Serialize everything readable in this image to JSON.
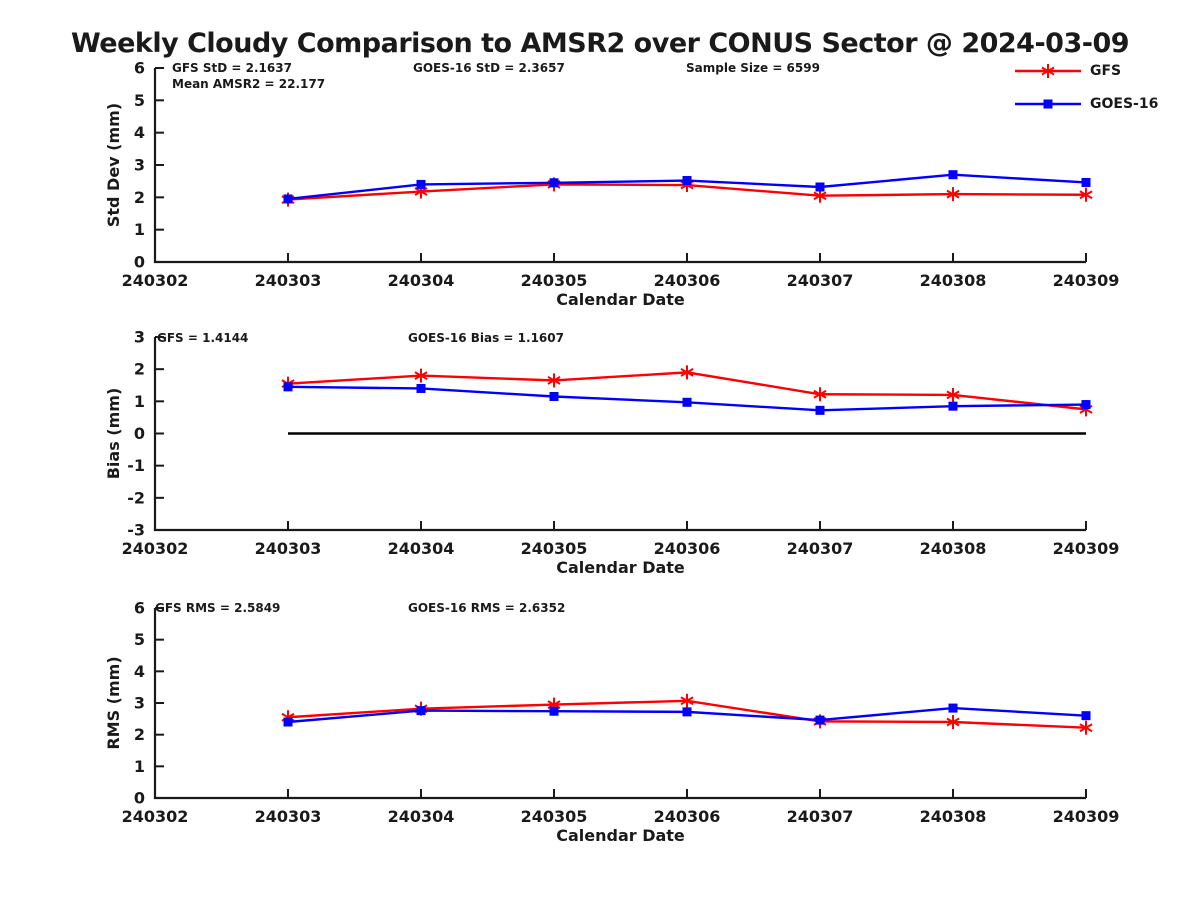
{
  "title": "Weekly Cloudy Comparison to AMSR2 over CONUS Sector @ 2024-03-09",
  "colors": {
    "gfs": "#ff0000",
    "goes16": "#0000ff",
    "axis": "#1a1a1a",
    "zero_line": "#000000"
  },
  "legend": {
    "items": [
      {
        "label": "GFS",
        "color": "#ff0000",
        "marker": "asterisk"
      },
      {
        "label": "GOES-16",
        "color": "#0000ff",
        "marker": "square"
      }
    ]
  },
  "chart_data": [
    {
      "type": "line",
      "id": "stddev",
      "ylabel": "Std Dev (mm)",
      "xlabel": "Calendar Date",
      "ylim": [
        0,
        6
      ],
      "yticks": [
        0,
        1,
        2,
        3,
        4,
        5,
        6
      ],
      "x_categories": [
        "240302",
        "240303",
        "240304",
        "240305",
        "240306",
        "240307",
        "240308",
        "240309"
      ],
      "annotations": [
        {
          "text": "GFS StD = 2.1637"
        },
        {
          "text": "Mean AMSR2 = 22.177"
        },
        {
          "text": "GOES-16 StD = 2.3657"
        },
        {
          "text": "Sample Size = 6599"
        }
      ],
      "series": [
        {
          "name": "GFS",
          "color": "#ff0000",
          "marker": "asterisk",
          "x": [
            "240303",
            "240304",
            "240305",
            "240306",
            "240307",
            "240308",
            "240309"
          ],
          "values": [
            1.93,
            2.18,
            2.4,
            2.38,
            2.05,
            2.1,
            2.08
          ]
        },
        {
          "name": "GOES-16",
          "color": "#0000ff",
          "marker": "square",
          "x": [
            "240303",
            "240304",
            "240305",
            "240306",
            "240307",
            "240308",
            "240309"
          ],
          "values": [
            1.95,
            2.4,
            2.45,
            2.52,
            2.32,
            2.7,
            2.46
          ]
        }
      ]
    },
    {
      "type": "line",
      "id": "bias",
      "ylabel": "Bias (mm)",
      "xlabel": "Calendar Date",
      "ylim": [
        -3,
        3
      ],
      "yticks": [
        -3,
        -2,
        -1,
        0,
        1,
        2,
        3
      ],
      "x_categories": [
        "240302",
        "240303",
        "240304",
        "240305",
        "240306",
        "240307",
        "240308",
        "240309"
      ],
      "annotations": [
        {
          "text": "GFS = 1.4144"
        },
        {
          "text": "GOES-16 Bias  = 1.1607"
        }
      ],
      "ref_line": {
        "y": 0,
        "x_start": "240303",
        "x_end": "240309",
        "color": "#000000"
      },
      "series": [
        {
          "name": "GFS",
          "color": "#ff0000",
          "marker": "asterisk",
          "x": [
            "240303",
            "240304",
            "240305",
            "240306",
            "240307",
            "240308",
            "240309"
          ],
          "values": [
            1.55,
            1.8,
            1.65,
            1.9,
            1.22,
            1.2,
            0.75
          ]
        },
        {
          "name": "GOES-16",
          "color": "#0000ff",
          "marker": "square",
          "x": [
            "240303",
            "240304",
            "240305",
            "240306",
            "240307",
            "240308",
            "240309"
          ],
          "values": [
            1.45,
            1.4,
            1.15,
            0.97,
            0.72,
            0.85,
            0.9
          ]
        }
      ]
    },
    {
      "type": "line",
      "id": "rms",
      "ylabel": "RMS (mm)",
      "xlabel": "Calendar Date",
      "ylim": [
        0,
        6
      ],
      "yticks": [
        0,
        1,
        2,
        3,
        4,
        5,
        6
      ],
      "x_categories": [
        "240302",
        "240303",
        "240304",
        "240305",
        "240306",
        "240307",
        "240308",
        "240309"
      ],
      "annotations": [
        {
          "text": "GFS RMS = 2.5849"
        },
        {
          "text": "GOES-16 RMS = 2.6352"
        }
      ],
      "series": [
        {
          "name": "GFS",
          "color": "#ff0000",
          "marker": "asterisk",
          "x": [
            "240303",
            "240304",
            "240305",
            "240306",
            "240307",
            "240308",
            "240309"
          ],
          "values": [
            2.55,
            2.82,
            2.95,
            3.07,
            2.42,
            2.4,
            2.22
          ]
        },
        {
          "name": "GOES-16",
          "color": "#0000ff",
          "marker": "square",
          "x": [
            "240303",
            "240304",
            "240305",
            "240306",
            "240307",
            "240308",
            "240309"
          ],
          "values": [
            2.4,
            2.76,
            2.74,
            2.72,
            2.46,
            2.84,
            2.6
          ]
        }
      ]
    }
  ]
}
